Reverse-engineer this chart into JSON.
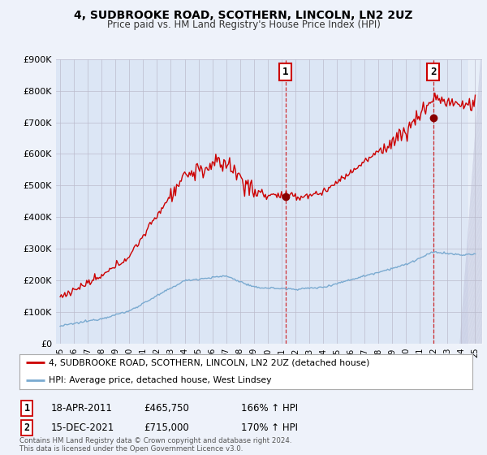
{
  "title": "4, SUDBROOKE ROAD, SCOTHERN, LINCOLN, LN2 2UZ",
  "subtitle": "Price paid vs. HM Land Registry's House Price Index (HPI)",
  "ylim": [
    0,
    900000
  ],
  "yticks": [
    0,
    100000,
    200000,
    300000,
    400000,
    500000,
    600000,
    700000,
    800000,
    900000
  ],
  "ytick_labels": [
    "£0",
    "£100K",
    "£200K",
    "£300K",
    "£400K",
    "£500K",
    "£600K",
    "£700K",
    "£800K",
    "£900K"
  ],
  "background_color": "#eef2fa",
  "plot_bg_color": "#dce6f5",
  "sale1_date": 2011.29,
  "sale1_price": 465750,
  "sale1_text": "18-APR-2011",
  "sale1_price_text": "£465,750",
  "sale1_hpi": "166% ↑ HPI",
  "sale2_date": 2021.96,
  "sale2_price": 715000,
  "sale2_text": "15-DEC-2021",
  "sale2_price_text": "£715,000",
  "sale2_hpi": "170% ↑ HPI",
  "legend_label1": "4, SUDBROOKE ROAD, SCOTHERN, LINCOLN, LN2 2UZ (detached house)",
  "legend_label2": "HPI: Average price, detached house, West Lindsey",
  "footer": "Contains HM Land Registry data © Crown copyright and database right 2024.\nThis data is licensed under the Open Government Licence v3.0.",
  "line1_color": "#cc0000",
  "line2_color": "#7aaad0",
  "vline_color": "#cc0000",
  "grid_color": "#bbbbcc",
  "box_edge_color": "#cc0000",
  "marker_color": "#880000"
}
